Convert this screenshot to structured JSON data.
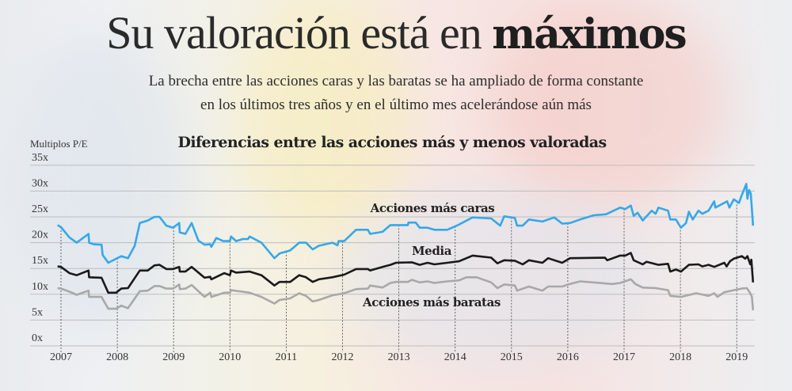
{
  "header": {
    "title_light": "Su valoración está en ",
    "title_bold": "máximos",
    "subtitle_line1": "La brecha entre las acciones caras y las baratas se ha ampliado de forma constante",
    "subtitle_line2": "en los últimos tres años y en el último mes acelerándose aún más"
  },
  "chart_data": {
    "type": "line",
    "title": "Diferencias entre las acciones más y menos valoradas",
    "ylabel": "Multiplos P/E",
    "xlabel": "",
    "ylim": [
      0,
      35
    ],
    "xlim": [
      2007,
      2019.3
    ],
    "y_ticks": [
      "0x",
      "5x",
      "10x",
      "15x",
      "20x",
      "25x",
      "30x",
      "35x"
    ],
    "x_ticks": [
      "2007",
      "2008",
      "2009",
      "2010",
      "2011",
      "2012",
      "2013",
      "2014",
      "2015",
      "2016",
      "2017",
      "2018",
      "2019"
    ],
    "grid": true,
    "colors": {
      "caras": "#35a8e8",
      "media": "#1a1a1a",
      "baratas": "#a8a8a8"
    },
    "series": [
      {
        "name": "Acciones más caras",
        "key": "caras",
        "points": [
          [
            2006.94,
            23.4
          ],
          [
            2007.0,
            23.0
          ],
          [
            2007.15,
            21.0
          ],
          [
            2007.28,
            20.0
          ],
          [
            2007.49,
            21.7
          ],
          [
            2007.5,
            20.0
          ],
          [
            2007.58,
            19.7
          ],
          [
            2007.72,
            19.6
          ],
          [
            2007.74,
            17.6
          ],
          [
            2007.84,
            16.1
          ],
          [
            2008.07,
            17.4
          ],
          [
            2008.19,
            17.0
          ],
          [
            2008.31,
            19.4
          ],
          [
            2008.4,
            23.8
          ],
          [
            2008.54,
            24.3
          ],
          [
            2008.66,
            25.0
          ],
          [
            2008.75,
            25.0
          ],
          [
            2008.87,
            23.3
          ],
          [
            2008.99,
            22.9
          ],
          [
            2009.1,
            23.8
          ],
          [
            2009.11,
            22.0
          ],
          [
            2009.21,
            21.7
          ],
          [
            2009.32,
            23.8
          ],
          [
            2009.44,
            20.4
          ],
          [
            2009.55,
            19.6
          ],
          [
            2009.65,
            19.7
          ],
          [
            2009.67,
            19.2
          ],
          [
            2009.76,
            20.9
          ],
          [
            2009.88,
            20.3
          ],
          [
            2010.0,
            20.3
          ],
          [
            2010.02,
            21.2
          ],
          [
            2010.11,
            20.3
          ],
          [
            2010.23,
            20.7
          ],
          [
            2010.32,
            20.7
          ],
          [
            2010.35,
            21.2
          ],
          [
            2010.56,
            20.0
          ],
          [
            2010.79,
            17.0
          ],
          [
            2010.88,
            17.9
          ],
          [
            2011.07,
            18.5
          ],
          [
            2011.23,
            20.0
          ],
          [
            2011.35,
            20.0
          ],
          [
            2011.47,
            18.7
          ],
          [
            2011.58,
            19.4
          ],
          [
            2011.82,
            20.0
          ],
          [
            2011.91,
            19.5
          ],
          [
            2011.93,
            20.3
          ],
          [
            2012.03,
            20.3
          ],
          [
            2012.24,
            22.5
          ],
          [
            2012.45,
            22.5
          ],
          [
            2012.49,
            21.7
          ],
          [
            2012.71,
            22.1
          ],
          [
            2012.85,
            23.4
          ],
          [
            2013.16,
            23.4
          ],
          [
            2013.17,
            23.9
          ],
          [
            2013.3,
            23.9
          ],
          [
            2013.37,
            22.9
          ],
          [
            2013.51,
            22.9
          ],
          [
            2013.63,
            22.5
          ],
          [
            2013.86,
            22.5
          ],
          [
            2014.03,
            23.3
          ],
          [
            2014.31,
            24.9
          ],
          [
            2014.64,
            24.7
          ],
          [
            2014.8,
            23.3
          ],
          [
            2014.87,
            25.1
          ],
          [
            2015.06,
            24.8
          ],
          [
            2015.1,
            23.3
          ],
          [
            2015.2,
            23.3
          ],
          [
            2015.31,
            24.5
          ],
          [
            2015.55,
            24.1
          ],
          [
            2015.76,
            24.9
          ],
          [
            2015.9,
            23.7
          ],
          [
            2016.04,
            23.8
          ],
          [
            2016.22,
            24.5
          ],
          [
            2016.46,
            25.3
          ],
          [
            2016.68,
            25.5
          ],
          [
            2016.93,
            26.8
          ],
          [
            2017.02,
            26.5
          ],
          [
            2017.12,
            27.2
          ],
          [
            2017.17,
            25.2
          ],
          [
            2017.24,
            25.8
          ],
          [
            2017.33,
            24.3
          ],
          [
            2017.49,
            26.2
          ],
          [
            2017.56,
            25.6
          ],
          [
            2017.61,
            26.8
          ],
          [
            2017.78,
            26.2
          ],
          [
            2017.82,
            24.5
          ],
          [
            2017.92,
            24.5
          ],
          [
            2018.01,
            22.9
          ],
          [
            2018.1,
            23.8
          ],
          [
            2018.15,
            26.0
          ],
          [
            2018.22,
            24.5
          ],
          [
            2018.32,
            26.2
          ],
          [
            2018.39,
            25.6
          ],
          [
            2018.5,
            26.2
          ],
          [
            2018.6,
            28.0
          ],
          [
            2018.62,
            26.8
          ],
          [
            2018.83,
            28.0
          ],
          [
            2018.87,
            26.8
          ],
          [
            2018.95,
            28.4
          ],
          [
            2019.04,
            27.7
          ],
          [
            2019.09,
            29.2
          ],
          [
            2019.17,
            31.4
          ],
          [
            2019.19,
            28.5
          ],
          [
            2019.22,
            30.2
          ],
          [
            2019.25,
            29.5
          ],
          [
            2019.29,
            23.3
          ]
        ]
      },
      {
        "name": "Media",
        "key": "media",
        "points": [
          [
            2006.94,
            15.4
          ],
          [
            2007.0,
            15.3
          ],
          [
            2007.15,
            14.1
          ],
          [
            2007.28,
            13.7
          ],
          [
            2007.49,
            14.6
          ],
          [
            2007.5,
            13.3
          ],
          [
            2007.72,
            13.2
          ],
          [
            2007.84,
            10.3
          ],
          [
            2007.98,
            10.3
          ],
          [
            2008.07,
            11.1
          ],
          [
            2008.19,
            11.2
          ],
          [
            2008.4,
            14.6
          ],
          [
            2008.54,
            14.6
          ],
          [
            2008.66,
            15.6
          ],
          [
            2008.75,
            15.7
          ],
          [
            2008.87,
            14.9
          ],
          [
            2008.99,
            14.9
          ],
          [
            2009.1,
            15.3
          ],
          [
            2009.11,
            14.4
          ],
          [
            2009.21,
            14.4
          ],
          [
            2009.32,
            15.3
          ],
          [
            2009.55,
            13.2
          ],
          [
            2009.65,
            13.4
          ],
          [
            2009.67,
            12.9
          ],
          [
            2009.9,
            14.1
          ],
          [
            2010.0,
            13.7
          ],
          [
            2010.02,
            14.6
          ],
          [
            2010.11,
            14.2
          ],
          [
            2010.35,
            14.4
          ],
          [
            2010.56,
            13.7
          ],
          [
            2010.79,
            11.7
          ],
          [
            2010.88,
            12.4
          ],
          [
            2011.07,
            12.4
          ],
          [
            2011.23,
            13.7
          ],
          [
            2011.35,
            13.3
          ],
          [
            2011.47,
            12.4
          ],
          [
            2011.58,
            12.9
          ],
          [
            2011.82,
            13.3
          ],
          [
            2012.03,
            13.8
          ],
          [
            2012.24,
            14.9
          ],
          [
            2012.45,
            14.9
          ],
          [
            2012.49,
            14.6
          ],
          [
            2012.71,
            15.3
          ],
          [
            2012.85,
            15.7
          ],
          [
            2012.95,
            16.1
          ],
          [
            2013.23,
            16.2
          ],
          [
            2013.37,
            15.7
          ],
          [
            2013.51,
            16.1
          ],
          [
            2013.63,
            15.8
          ],
          [
            2013.86,
            16.1
          ],
          [
            2014.07,
            16.4
          ],
          [
            2014.31,
            17.5
          ],
          [
            2014.64,
            17.1
          ],
          [
            2014.75,
            16.0
          ],
          [
            2014.87,
            16.6
          ],
          [
            2015.06,
            16.5
          ],
          [
            2015.2,
            15.8
          ],
          [
            2015.31,
            16.6
          ],
          [
            2015.55,
            16.1
          ],
          [
            2015.65,
            17.0
          ],
          [
            2015.9,
            16.1
          ],
          [
            2016.04,
            17.0
          ],
          [
            2016.66,
            17.1
          ],
          [
            2016.7,
            16.6
          ],
          [
            2016.93,
            17.5
          ],
          [
            2017.02,
            17.5
          ],
          [
            2017.12,
            18.0
          ],
          [
            2017.17,
            16.6
          ],
          [
            2017.33,
            15.8
          ],
          [
            2017.4,
            16.3
          ],
          [
            2017.61,
            15.7
          ],
          [
            2017.78,
            15.9
          ],
          [
            2017.82,
            14.4
          ],
          [
            2017.92,
            14.8
          ],
          [
            2018.01,
            14.4
          ],
          [
            2018.15,
            15.7
          ],
          [
            2018.32,
            15.8
          ],
          [
            2018.39,
            15.4
          ],
          [
            2018.5,
            15.7
          ],
          [
            2018.6,
            15.3
          ],
          [
            2018.78,
            16.1
          ],
          [
            2018.82,
            15.4
          ],
          [
            2018.88,
            16.4
          ],
          [
            2018.95,
            16.9
          ],
          [
            2019.09,
            17.4
          ],
          [
            2019.15,
            16.9
          ],
          [
            2019.19,
            17.4
          ],
          [
            2019.24,
            15.8
          ],
          [
            2019.26,
            16.7
          ],
          [
            2019.29,
            12.3
          ]
        ]
      },
      {
        "name": "Acciones más baratas",
        "key": "baratas",
        "points": [
          [
            2006.94,
            11.2
          ],
          [
            2007.0,
            11.1
          ],
          [
            2007.15,
            10.5
          ],
          [
            2007.28,
            9.9
          ],
          [
            2007.49,
            10.7
          ],
          [
            2007.5,
            9.5
          ],
          [
            2007.72,
            9.5
          ],
          [
            2007.84,
            7.2
          ],
          [
            2007.98,
            7.2
          ],
          [
            2008.07,
            7.8
          ],
          [
            2008.19,
            7.3
          ],
          [
            2008.4,
            10.6
          ],
          [
            2008.54,
            10.7
          ],
          [
            2008.66,
            11.6
          ],
          [
            2008.75,
            11.6
          ],
          [
            2008.87,
            11.1
          ],
          [
            2008.99,
            11.1
          ],
          [
            2009.1,
            11.9
          ],
          [
            2009.11,
            11.0
          ],
          [
            2009.21,
            11.1
          ],
          [
            2009.32,
            11.8
          ],
          [
            2009.55,
            9.5
          ],
          [
            2009.65,
            10.3
          ],
          [
            2009.67,
            9.5
          ],
          [
            2009.9,
            10.3
          ],
          [
            2010.0,
            10.3
          ],
          [
            2010.02,
            10.8
          ],
          [
            2010.35,
            10.3
          ],
          [
            2010.56,
            9.5
          ],
          [
            2010.79,
            8.2
          ],
          [
            2010.88,
            8.9
          ],
          [
            2011.07,
            9.2
          ],
          [
            2011.23,
            10.2
          ],
          [
            2011.35,
            9.7
          ],
          [
            2011.47,
            8.6
          ],
          [
            2011.58,
            8.9
          ],
          [
            2011.82,
            9.8
          ],
          [
            2012.03,
            10.2
          ],
          [
            2012.24,
            11.0
          ],
          [
            2012.45,
            11.1
          ],
          [
            2012.49,
            11.7
          ],
          [
            2012.71,
            11.3
          ],
          [
            2012.85,
            12.2
          ],
          [
            2012.95,
            12.4
          ],
          [
            2013.16,
            12.4
          ],
          [
            2013.23,
            12.8
          ],
          [
            2013.37,
            12.3
          ],
          [
            2013.51,
            12.5
          ],
          [
            2013.63,
            12.2
          ],
          [
            2013.86,
            12.5
          ],
          [
            2014.07,
            12.7
          ],
          [
            2014.2,
            13.3
          ],
          [
            2014.38,
            13.3
          ],
          [
            2014.64,
            12.3
          ],
          [
            2014.75,
            11.2
          ],
          [
            2014.87,
            11.9
          ],
          [
            2015.06,
            11.7
          ],
          [
            2015.1,
            10.7
          ],
          [
            2015.31,
            11.5
          ],
          [
            2015.55,
            10.7
          ],
          [
            2015.65,
            11.5
          ],
          [
            2015.9,
            11.5
          ],
          [
            2016.04,
            12.0
          ],
          [
            2016.22,
            12.5
          ],
          [
            2016.79,
            12.0
          ],
          [
            2016.93,
            12.2
          ],
          [
            2017.12,
            12.9
          ],
          [
            2017.2,
            12.0
          ],
          [
            2017.33,
            11.3
          ],
          [
            2017.56,
            11.2
          ],
          [
            2017.78,
            10.8
          ],
          [
            2017.82,
            9.7
          ],
          [
            2018.01,
            9.5
          ],
          [
            2018.28,
            10.2
          ],
          [
            2018.5,
            9.7
          ],
          [
            2018.6,
            10.2
          ],
          [
            2018.66,
            9.5
          ],
          [
            2018.78,
            10.4
          ],
          [
            2018.95,
            10.8
          ],
          [
            2019.09,
            11.1
          ],
          [
            2019.18,
            11.2
          ],
          [
            2019.24,
            10.2
          ],
          [
            2019.27,
            9.5
          ],
          [
            2019.29,
            6.9
          ]
        ]
      }
    ],
    "annotations": [
      "Acciones más caras",
      "Media",
      "Acciones más baratas"
    ]
  }
}
